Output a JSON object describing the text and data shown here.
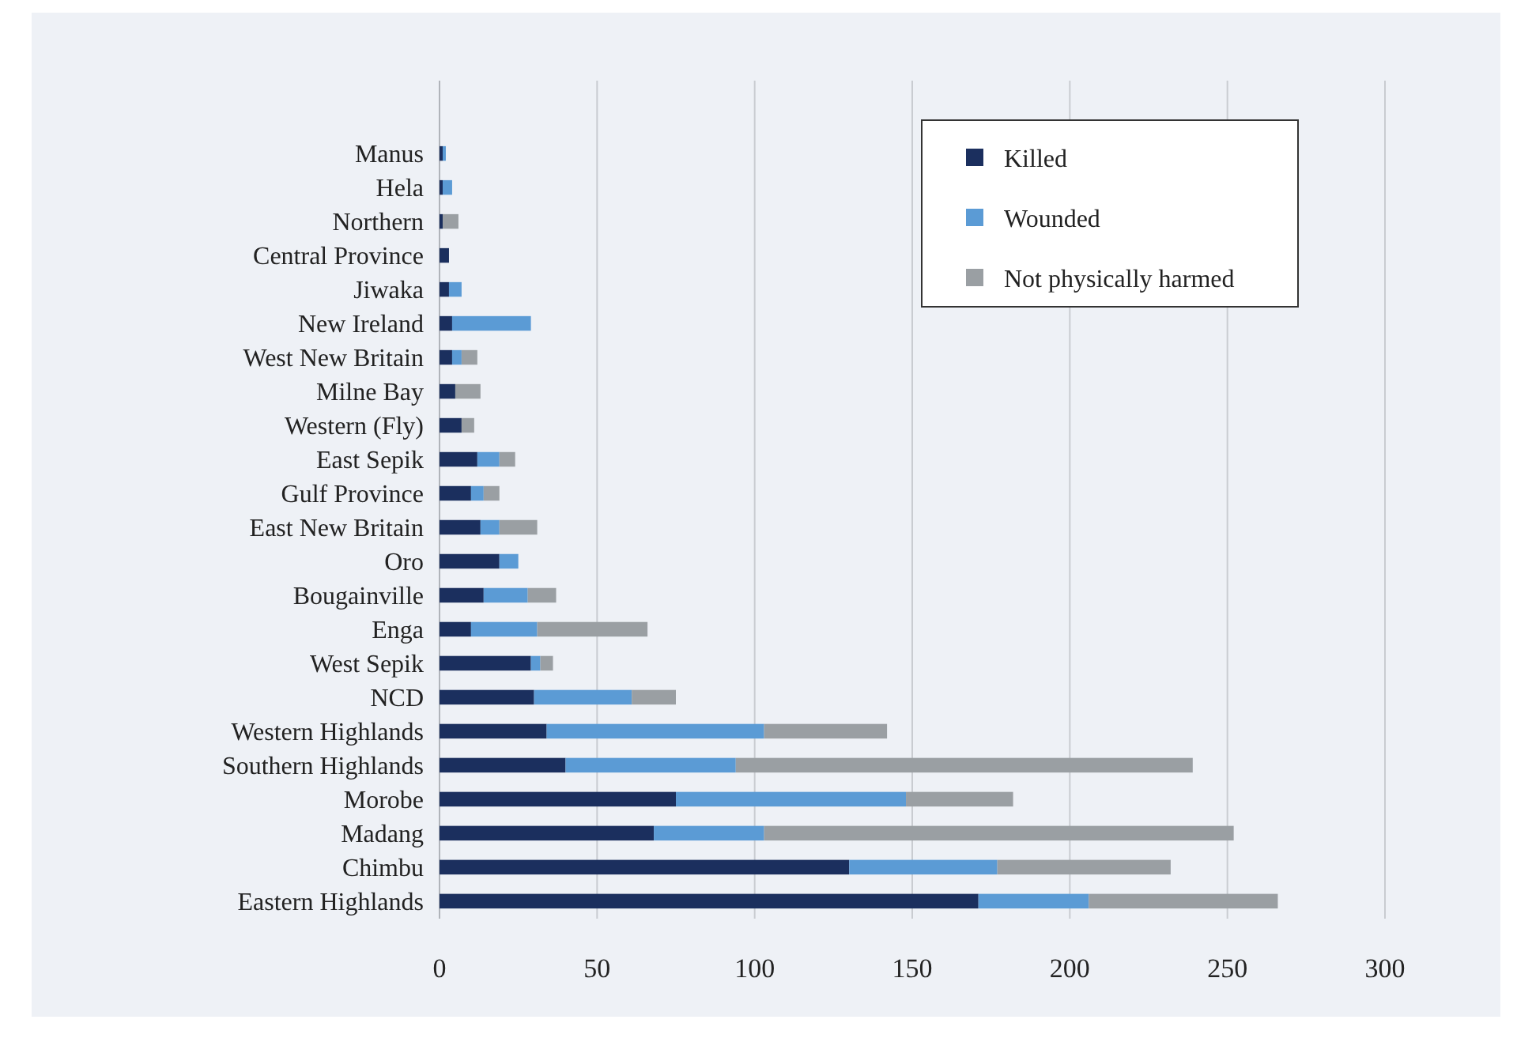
{
  "chart_data": {
    "type": "bar",
    "orientation": "horizontal",
    "stacked": true,
    "categories": [
      "Manus",
      "Hela",
      "Northern",
      "Central Province",
      "Jiwaka",
      "New Ireland",
      "West New Britain",
      "Milne Bay",
      "Western (Fly)",
      "East Sepik",
      "Gulf Province",
      "East New Britain",
      "Oro",
      "Bougainville",
      "Enga",
      "West Sepik",
      "NCD",
      "Western Highlands",
      "Southern Highlands",
      "Morobe",
      "Madang",
      "Chimbu",
      "Eastern Highlands"
    ],
    "series": [
      {
        "name": "Killed",
        "color": "#1b2f5e",
        "values": [
          1,
          1,
          1,
          3,
          3,
          4,
          4,
          5,
          7,
          12,
          10,
          13,
          19,
          14,
          10,
          29,
          30,
          34,
          40,
          75,
          68,
          130,
          171
        ]
      },
      {
        "name": "Wounded",
        "color": "#5b9bd5",
        "values": [
          1,
          3,
          0,
          0,
          4,
          25,
          3,
          0,
          0,
          7,
          4,
          6,
          6,
          14,
          21,
          3,
          31,
          69,
          54,
          73,
          35,
          47,
          35
        ]
      },
      {
        "name": "Not physically harmed",
        "color": "#9a9fa3",
        "values": [
          0,
          0,
          5,
          0,
          0,
          0,
          5,
          8,
          4,
          5,
          5,
          12,
          0,
          9,
          35,
          4,
          14,
          39,
          145,
          34,
          149,
          55,
          60
        ]
      }
    ],
    "xlim": [
      0,
      300
    ],
    "xticks": [
      0,
      50,
      100,
      150,
      200,
      250,
      300
    ],
    "grid": "x",
    "legend": "top right"
  }
}
